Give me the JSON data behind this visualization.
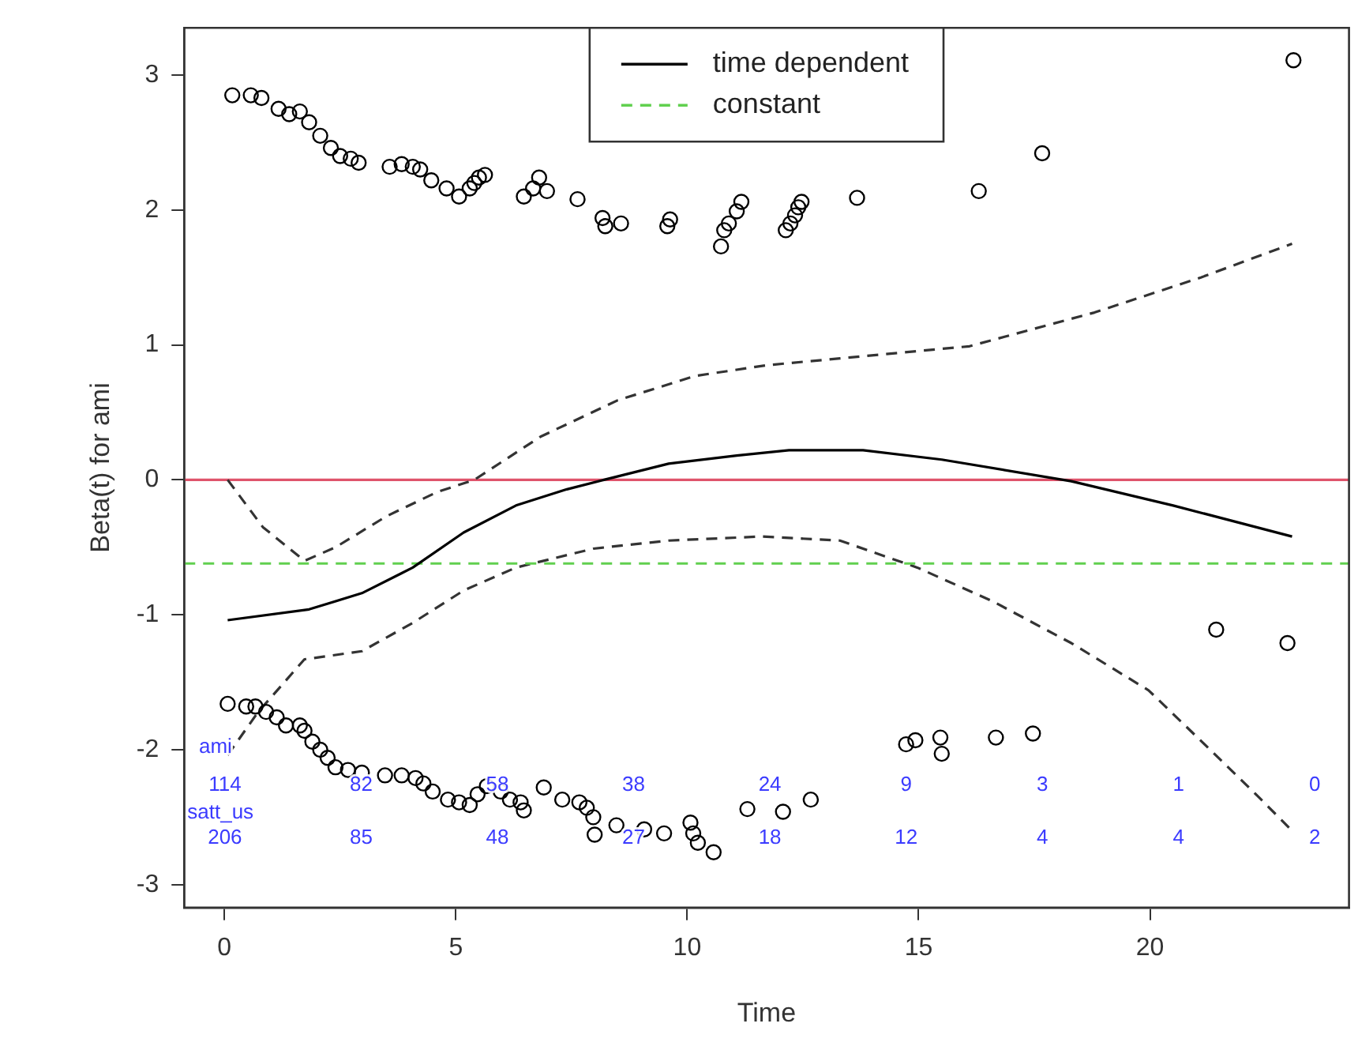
{
  "chart_data": {
    "type": "line",
    "xlabel": "Time",
    "ylabel": "Beta(t) for ami",
    "xlim": [
      -0.87,
      24.3
    ],
    "ylim": [
      -3.17,
      3.35
    ],
    "xticks": [
      0,
      5,
      10,
      15,
      20
    ],
    "yticks": [
      -3,
      -2,
      -1,
      0,
      1,
      2,
      3
    ],
    "grid": false,
    "legend": "top",
    "marker": "none",
    "series": [
      {
        "name": "time dependent",
        "color": "#000000",
        "line_style": "solid",
        "x": [
          0.07,
          1.83,
          2.97,
          4.07,
          5.17,
          6.3,
          7.4,
          8.2,
          9.6,
          11.07,
          12.2,
          13.8,
          15.5,
          18.3,
          20.5,
          23.07
        ],
        "values": [
          -1.04,
          -0.96,
          -0.84,
          -0.65,
          -0.39,
          -0.19,
          -0.07,
          0,
          0.12,
          0.18,
          0.22,
          0.22,
          0.15,
          -0.01,
          -0.19,
          -0.42
        ]
      },
      {
        "name": "constant",
        "color": "#61d04f",
        "line_style": "dashed",
        "x": [
          -0.87,
          24.3
        ],
        "values": [
          -0.62,
          -0.62
        ]
      },
      {
        "color": "#333333",
        "line_style": "dashed",
        "x": [
          0.07,
          0.83,
          1.73,
          2.4,
          3.5,
          4.6,
          5.4,
          6.83,
          8.5,
          10.17,
          11.73,
          13.3,
          16.1,
          18.8,
          21.1,
          23.07
        ],
        "values": [
          0,
          -0.35,
          -0.6,
          -0.5,
          -0.27,
          -0.09,
          0,
          0.32,
          0.59,
          0.77,
          0.85,
          0.9,
          0.99,
          1.24,
          1.5,
          1.75
        ]
      },
      {
        "color": "#333333",
        "line_style": "dashed",
        "x": [
          0.07,
          0.73,
          1.73,
          2.97,
          4.07,
          5.17,
          6.3,
          7.97,
          9.6,
          11.6,
          13.3,
          14.97,
          16.6,
          18.3,
          19.97,
          21.3,
          22.2,
          23.07
        ],
        "values": [
          -2.04,
          -1.72,
          -1.33,
          -1.27,
          -1.06,
          -0.82,
          -0.65,
          -0.51,
          -0.45,
          -0.42,
          -0.45,
          -0.65,
          -0.9,
          -1.21,
          -1.56,
          -2.0,
          -2.3,
          -2.6
        ]
      },
      {
        "type": "scatter",
        "marker": "circle",
        "color": "#000000",
        "x": [
          0.17,
          0.57,
          0.8,
          1.17,
          1.4,
          1.63,
          1.83,
          2.07,
          2.3,
          2.5,
          2.73,
          2.9,
          3.57,
          3.83,
          4.07,
          4.23,
          4.47,
          4.8,
          5.07,
          5.3,
          5.4,
          5.5,
          5.63,
          6.47,
          6.67,
          6.8,
          6.97,
          7.63,
          8.17,
          8.23,
          8.57,
          9.57,
          9.63,
          10.73,
          10.8,
          10.9,
          11.07,
          11.17,
          12.13,
          12.23,
          12.33,
          12.4,
          12.47,
          13.67,
          16.3,
          17.67,
          23.1,
          0.07,
          0.47,
          0.67,
          0.9,
          1.13,
          1.33,
          1.63,
          1.73,
          1.9,
          2.07,
          2.23,
          2.4,
          2.67,
          2.97,
          3.47,
          3.83,
          4.13,
          4.3,
          4.5,
          4.83,
          5.07,
          5.3,
          5.47,
          5.67,
          5.97,
          6.17,
          6.4,
          6.47,
          6.9,
          7.3,
          7.67,
          7.83,
          7.97,
          8.0,
          8.47,
          9.07,
          9.5,
          10.07,
          10.13,
          10.23,
          10.57,
          11.3,
          12.07,
          12.67,
          14.73,
          14.93,
          15.47,
          15.5,
          16.67,
          17.47,
          21.43,
          22.97
        ],
        "values": [
          2.85,
          2.85,
          2.83,
          2.75,
          2.71,
          2.73,
          2.65,
          2.55,
          2.46,
          2.4,
          2.38,
          2.35,
          2.32,
          2.34,
          2.32,
          2.3,
          2.22,
          2.16,
          2.1,
          2.16,
          2.2,
          2.24,
          2.26,
          2.1,
          2.16,
          2.24,
          2.14,
          2.08,
          1.94,
          1.88,
          1.9,
          1.88,
          1.93,
          1.73,
          1.85,
          1.9,
          1.99,
          2.06,
          1.85,
          1.9,
          1.96,
          2.02,
          2.06,
          2.09,
          2.14,
          2.42,
          3.11,
          -1.66,
          -1.68,
          -1.68,
          -1.72,
          -1.76,
          -1.82,
          -1.82,
          -1.86,
          -1.94,
          -2.0,
          -2.06,
          -2.13,
          -2.15,
          -2.17,
          -2.19,
          -2.19,
          -2.21,
          -2.25,
          -2.31,
          -2.37,
          -2.39,
          -2.41,
          -2.33,
          -2.27,
          -2.31,
          -2.37,
          -2.39,
          -2.45,
          -2.28,
          -2.37,
          -2.39,
          -2.43,
          -2.5,
          -2.63,
          -2.56,
          -2.59,
          -2.62,
          -2.54,
          -2.62,
          -2.69,
          -2.76,
          -2.44,
          -2.46,
          -2.37,
          -1.96,
          -1.93,
          -1.91,
          -2.03,
          -1.91,
          -1.88,
          -1.11,
          -1.21
        ]
      }
    ],
    "ref_lines": [
      {
        "axis": "y",
        "value": 0,
        "color": "#df536b"
      }
    ],
    "annotations": [
      "ami",
      "114",
      "82",
      "58",
      "38",
      "24",
      "9",
      "3",
      "1",
      "0",
      "satt_us",
      "206",
      "85",
      "48",
      "27",
      "18",
      "12",
      "4",
      "4",
      "2"
    ]
  }
}
